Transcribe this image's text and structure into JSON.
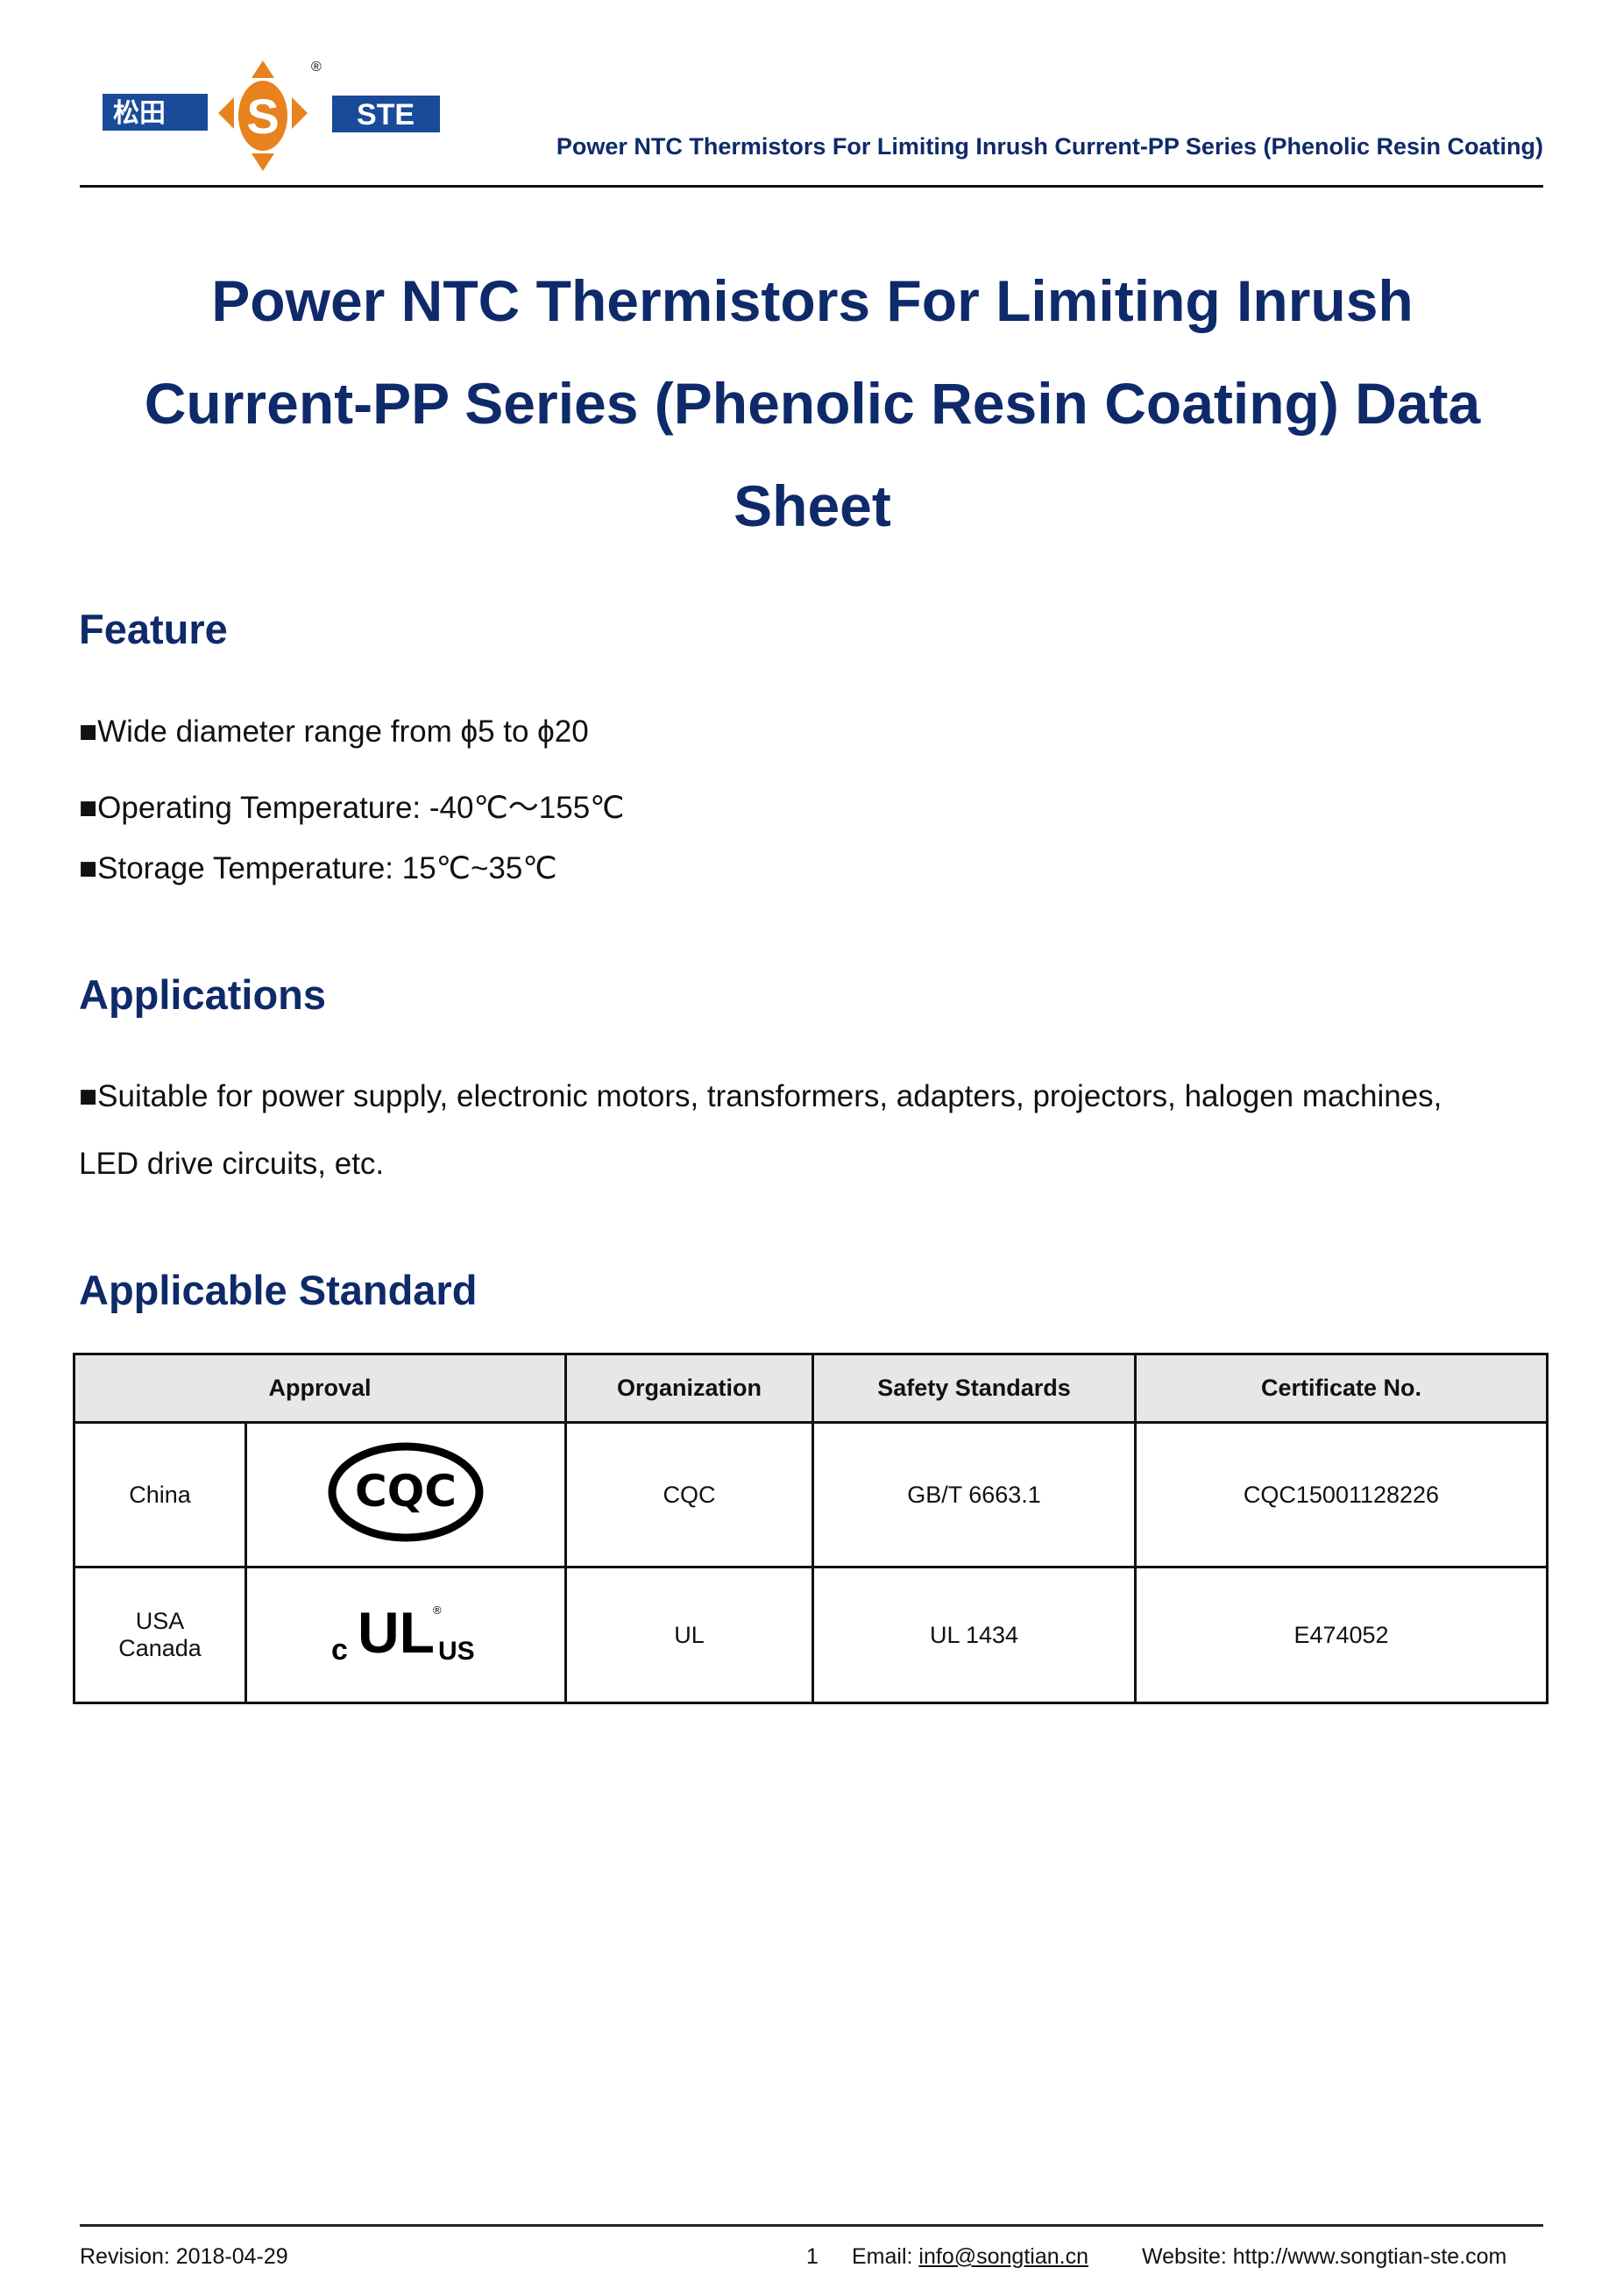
{
  "header": {
    "logo_text": "松田 S STE",
    "registered": "®",
    "running_title": "Power NTC Thermistors For Limiting Inrush Current-PP Series (Phenolic Resin Coating)"
  },
  "title": {
    "line1": "Power NTC Thermistors For Limiting Inrush",
    "line2": "Current-PP Series (Phenolic Resin Coating) Data",
    "line3": "Sheet"
  },
  "feature": {
    "heading": "Feature",
    "items": [
      "■Wide diameter range from  ϕ5 to  ϕ20",
      "■Operating Temperature: -40℃～155℃",
      "■Storage Temperature: 15℃~35℃"
    ]
  },
  "applications": {
    "heading": "Applications",
    "line1": "■Suitable for power supply, electronic motors, transformers, adapters, projectors, halogen machines,",
    "line2": "LED drive circuits, etc."
  },
  "standard": {
    "heading": "Applicable Standard",
    "columns": [
      "Approval",
      "Organization",
      "Safety Standards",
      "Certificate No."
    ],
    "rows": [
      {
        "region": "China",
        "mark": "CQC",
        "organization": "CQC",
        "standard": "GB/T 6663.1",
        "certificate": "CQC15001128226"
      },
      {
        "region_line1": "USA",
        "region_line2": "Canada",
        "mark": "c UL us",
        "organization": "UL",
        "standard": "UL 1434",
        "certificate": "E474052"
      }
    ]
  },
  "footer": {
    "revision": "Revision: 2018-04-29",
    "page": "1",
    "email_label": "Email:",
    "email": "info@songtian.cn",
    "website": "Website: http://www.songtian-ste.com"
  },
  "colors": {
    "brand_blue": "#1a4a9a",
    "brand_orange": "#e8821e",
    "heading": "#0f2a6a"
  }
}
